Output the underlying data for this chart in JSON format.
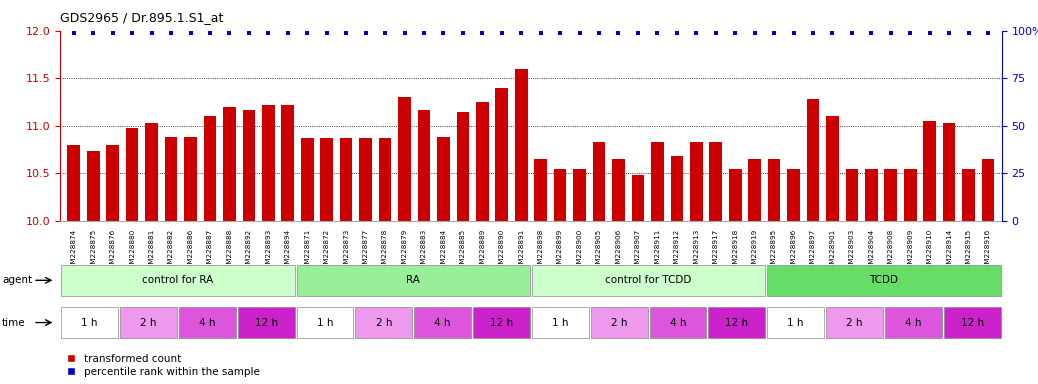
{
  "title": "GDS2965 / Dr.895.1.S1_at",
  "samples": [
    "GSM228874",
    "GSM228875",
    "GSM228876",
    "GSM228880",
    "GSM228881",
    "GSM228882",
    "GSM228886",
    "GSM228887",
    "GSM228888",
    "GSM228892",
    "GSM228893",
    "GSM228894",
    "GSM228871",
    "GSM228872",
    "GSM228873",
    "GSM228877",
    "GSM228878",
    "GSM228879",
    "GSM228883",
    "GSM228884",
    "GSM228885",
    "GSM228889",
    "GSM228890",
    "GSM228891",
    "GSM228898",
    "GSM228899",
    "GSM228900",
    "GSM228905",
    "GSM228906",
    "GSM228907",
    "GSM228911",
    "GSM228912",
    "GSM228913",
    "GSM228917",
    "GSM228918",
    "GSM228919",
    "GSM228895",
    "GSM228896",
    "GSM228897",
    "GSM228901",
    "GSM228903",
    "GSM228904",
    "GSM228908",
    "GSM228909",
    "GSM228910",
    "GSM228914",
    "GSM228915",
    "GSM228916"
  ],
  "bar_values": [
    10.8,
    10.73,
    10.8,
    10.98,
    11.03,
    10.88,
    10.88,
    11.1,
    11.2,
    11.17,
    11.22,
    11.22,
    10.87,
    10.87,
    10.87,
    10.87,
    10.87,
    11.3,
    11.17,
    10.88,
    11.15,
    11.25,
    11.4,
    11.6,
    10.65,
    10.55,
    10.55,
    10.83,
    10.65,
    10.48,
    10.83,
    10.68,
    10.83,
    10.83,
    10.55,
    10.65,
    10.65,
    10.55,
    11.28,
    11.1,
    10.55,
    10.55,
    10.55,
    10.55,
    11.05,
    11.03,
    10.55,
    10.65
  ],
  "percentile_value": 99,
  "ylim_left": [
    10.0,
    12.0
  ],
  "ylim_right": [
    0,
    100
  ],
  "yticks_left": [
    10.0,
    10.5,
    11.0,
    11.5,
    12.0
  ],
  "yticks_right": [
    0,
    25,
    50,
    75,
    100
  ],
  "bar_color": "#cc0000",
  "percentile_color": "#0000cc",
  "bg_color": "#ffffff",
  "agent_groups": [
    {
      "label": "control for RA",
      "start": 0,
      "end": 12,
      "color": "#ccffcc"
    },
    {
      "label": "RA",
      "start": 12,
      "end": 24,
      "color": "#99ee99"
    },
    {
      "label": "control for TCDD",
      "start": 24,
      "end": 36,
      "color": "#ccffcc"
    },
    {
      "label": "TCDD",
      "start": 36,
      "end": 48,
      "color": "#66dd66"
    }
  ],
  "time_groups": [
    {
      "label": "1 h",
      "start": 0,
      "end": 3,
      "color": "#ffffff"
    },
    {
      "label": "2 h",
      "start": 3,
      "end": 6,
      "color": "#ee99ee"
    },
    {
      "label": "4 h",
      "start": 6,
      "end": 9,
      "color": "#dd55dd"
    },
    {
      "label": "12 h",
      "start": 9,
      "end": 12,
      "color": "#cc22cc"
    },
    {
      "label": "1 h",
      "start": 12,
      "end": 15,
      "color": "#ffffff"
    },
    {
      "label": "2 h",
      "start": 15,
      "end": 18,
      "color": "#ee99ee"
    },
    {
      "label": "4 h",
      "start": 18,
      "end": 21,
      "color": "#dd55dd"
    },
    {
      "label": "12 h",
      "start": 21,
      "end": 24,
      "color": "#cc22cc"
    },
    {
      "label": "1 h",
      "start": 24,
      "end": 27,
      "color": "#ffffff"
    },
    {
      "label": "2 h",
      "start": 27,
      "end": 30,
      "color": "#ee99ee"
    },
    {
      "label": "4 h",
      "start": 30,
      "end": 33,
      "color": "#dd55dd"
    },
    {
      "label": "12 h",
      "start": 33,
      "end": 36,
      "color": "#cc22cc"
    },
    {
      "label": "1 h",
      "start": 36,
      "end": 39,
      "color": "#ffffff"
    },
    {
      "label": "2 h",
      "start": 39,
      "end": 42,
      "color": "#ee99ee"
    },
    {
      "label": "4 h",
      "start": 42,
      "end": 45,
      "color": "#dd55dd"
    },
    {
      "label": "12 h",
      "start": 45,
      "end": 48,
      "color": "#cc22cc"
    }
  ],
  "legend_label_red": "transformed count",
  "legend_label_blue": "percentile rank within the sample"
}
